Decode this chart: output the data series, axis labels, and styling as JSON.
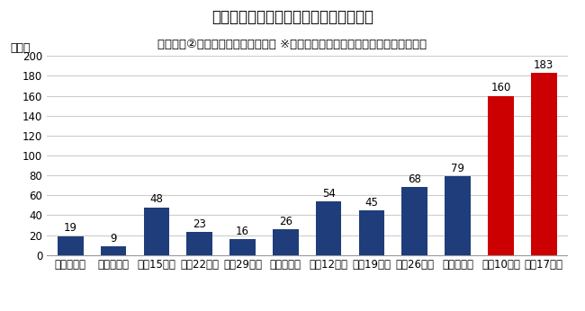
{
  "title": "令和５年　全国の熱中症救急搬送人員数",
  "subtitle": "（仕事場②：田畑、森林、海、川等 ※農・畜・水産作業を行っている場合のみ）",
  "ylabel": "（人）",
  "categories": [
    "５月１日～",
    "５月８日～",
    "５月15日～",
    "５月22日～",
    "５月29日～",
    "６月５日～",
    "６月12日～",
    "６月19日～",
    "６月26日～",
    "７月３日～",
    "７月10日～",
    "７月17日～"
  ],
  "values": [
    19,
    9,
    48,
    23,
    16,
    26,
    54,
    45,
    68,
    79,
    160,
    183
  ],
  "bar_colors": [
    "#1f3d7a",
    "#1f3d7a",
    "#1f3d7a",
    "#1f3d7a",
    "#1f3d7a",
    "#1f3d7a",
    "#1f3d7a",
    "#1f3d7a",
    "#1f3d7a",
    "#1f3d7a",
    "#cc0000",
    "#cc0000"
  ],
  "ylim": [
    0,
    200
  ],
  "yticks": [
    0,
    20,
    40,
    60,
    80,
    100,
    120,
    140,
    160,
    180,
    200
  ],
  "background_color": "#ffffff",
  "grid_color": "#cccccc",
  "title_fontsize": 12,
  "subtitle_fontsize": 9.5,
  "label_fontsize": 9,
  "tick_fontsize": 8.5,
  "value_fontsize": 8.5
}
